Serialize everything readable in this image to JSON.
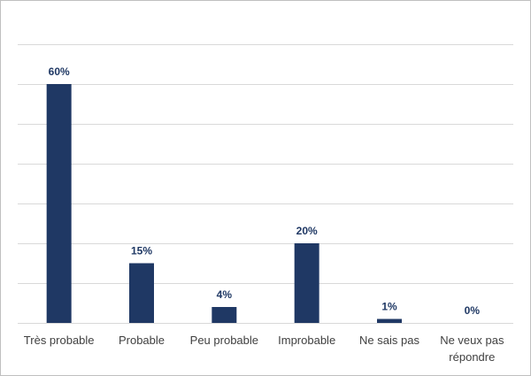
{
  "chart_data": {
    "type": "bar",
    "categories": [
      "Très probable",
      "Probable",
      "Peu probable",
      "Improbable",
      "Ne sais pas",
      "Ne veux pas répondre"
    ],
    "category_lines": [
      [
        "Très probable"
      ],
      [
        "Probable"
      ],
      [
        "Peu probable"
      ],
      [
        "Improbable"
      ],
      [
        "Ne sais pas"
      ],
      [
        "Ne veux pas",
        "répondre"
      ]
    ],
    "values": [
      60,
      15,
      4,
      20,
      1,
      0
    ],
    "data_labels": [
      "60%",
      "15%",
      "4%",
      "20%",
      "1%",
      "0%"
    ],
    "ylim": [
      0,
      70
    ],
    "ytick_step": 10,
    "grid": true,
    "legend": "none",
    "colors": {
      "bar": "#1f3864",
      "grid": "#d9d9d9",
      "label": "#1f3864",
      "tick": "#404040"
    }
  }
}
